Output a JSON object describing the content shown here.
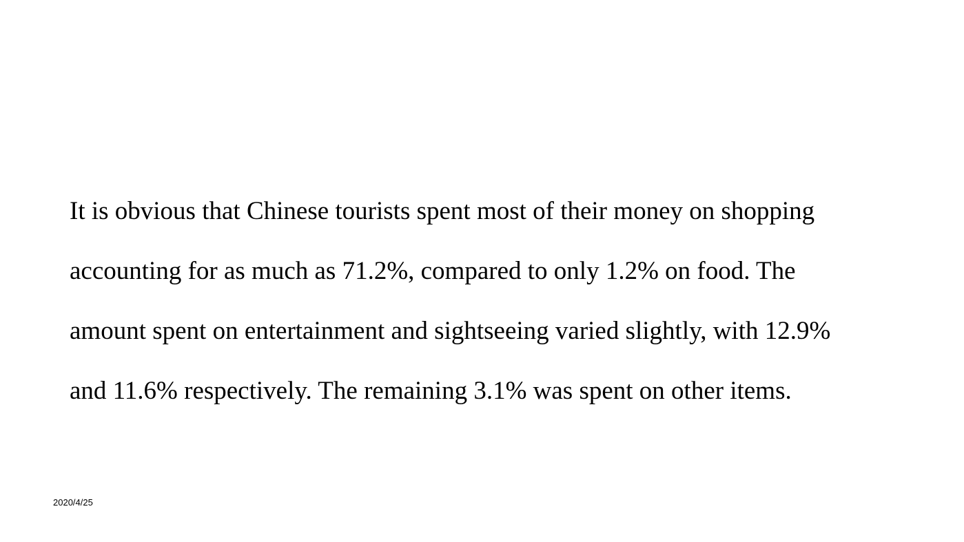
{
  "slide": {
    "paragraph_lines": [
      "It is obvious that Chinese tourists spent most of their money on shopping",
      "accounting for as much as 71.2%, compared to only 1.2% on food. The",
      "amount spent on entertainment and sightseeing varied slightly, with 12.9%",
      "and 11.6% respectively. The remaining 3.1% was spent on other items."
    ],
    "date": "2020/4/25"
  }
}
